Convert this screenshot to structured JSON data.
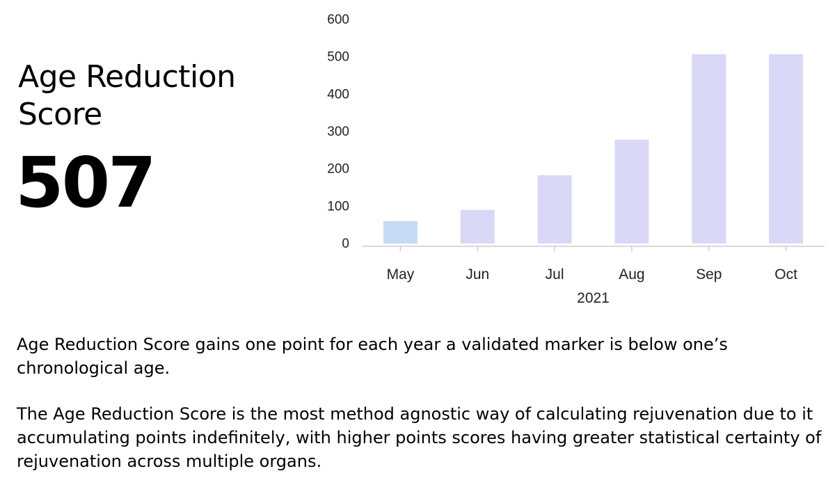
{
  "score": {
    "title": "Age Reduction Score",
    "value": "507"
  },
  "description": {
    "paragraph_1": "Age Reduction Score gains one point for each year a validated marker is below one’s chronological age.",
    "paragraph_2": "The Age Reduction Score is the most method agnostic way of calculating rejuvenation due to it accumulating points indefinitely, with higher points scores having greater statistical certainty of rejuvenation across multiple organs."
  },
  "chart_data": {
    "type": "bar",
    "categories": [
      "May",
      "Jun",
      "Jul",
      "Aug",
      "Sep",
      "Oct"
    ],
    "values": [
      60,
      90,
      183,
      278,
      507,
      507
    ],
    "xlabel": "2021",
    "ylabel": "",
    "ylim": [
      0,
      600
    ],
    "yticks": [
      0,
      100,
      200,
      300,
      400,
      500,
      600
    ],
    "grid": false,
    "legend": "none",
    "colors": {
      "bar": "#d9d8f6",
      "highlight_bar": "#c6daf8",
      "axis": "#cccccc"
    },
    "highlight_index": 0
  }
}
